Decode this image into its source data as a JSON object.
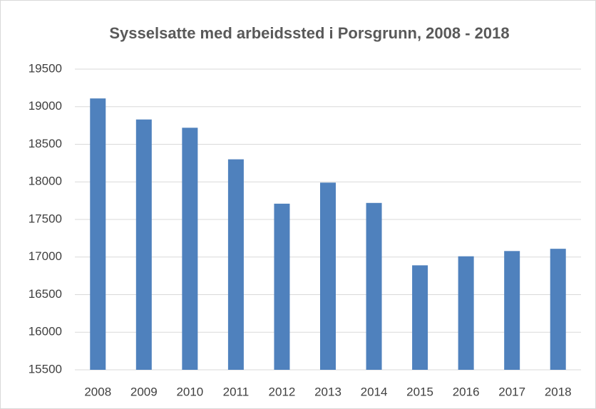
{
  "chart_data": {
    "type": "bar",
    "title": "Sysselsatte med arbeidssted i Porsgrunn, 2008 - 2018",
    "categories": [
      "2008",
      "2009",
      "2010",
      "2011",
      "2012",
      "2013",
      "2014",
      "2015",
      "2016",
      "2017",
      "2018"
    ],
    "values": [
      19110,
      18830,
      18720,
      18300,
      17710,
      17990,
      17720,
      16890,
      17010,
      17080,
      17110
    ],
    "color": "#4f81bd",
    "ylim": [
      15500,
      19500
    ],
    "yticks": [
      15500,
      16000,
      16500,
      17000,
      17500,
      18000,
      18500,
      19000,
      19500
    ],
    "grid": true
  }
}
